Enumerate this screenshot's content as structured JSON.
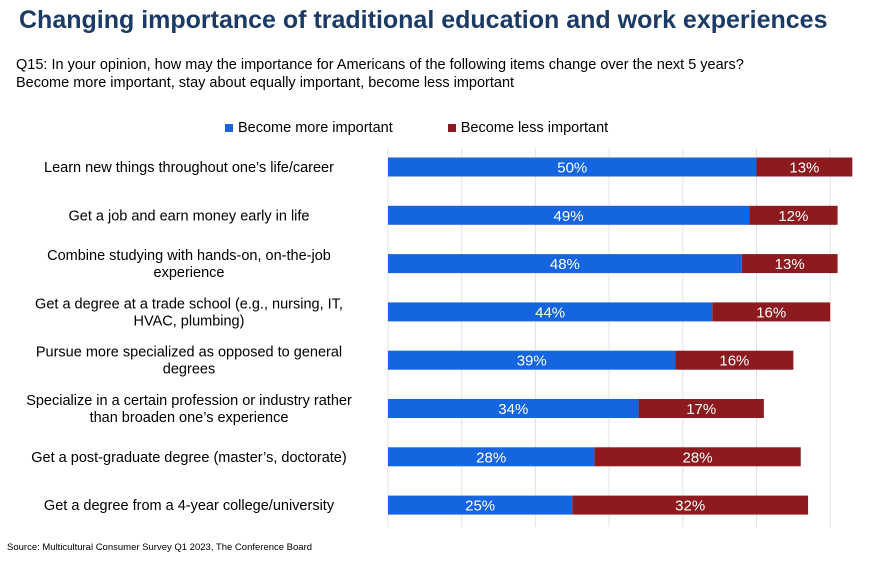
{
  "title": "Changing importance of traditional education and work experiences",
  "subtitle_line1": "Q15: In your opinion, how may the importance for Americans of the following items change over the next 5 years?",
  "subtitle_line2": "Become more important, stay about equally important, become less important",
  "source": "Source: Multicultural Consumer Survey Q1 2023, The Conference Board",
  "chart_data": {
    "type": "bar",
    "orientation": "horizontal",
    "stacked": true,
    "legend_position": "top",
    "xlim": [
      0,
      60
    ],
    "grid": true,
    "categories": [
      [
        "Learn new things throughout one’s life/career"
      ],
      [
        "Get a job and earn money early in life"
      ],
      [
        "Combine studying with hands-on, on-the-job",
        "experience"
      ],
      [
        "Get a degree at a trade school (e.g., nursing, IT,",
        "HVAC, plumbing)"
      ],
      [
        "Pursue more specialized as opposed to general",
        "degrees"
      ],
      [
        "Specialize in a certain profession or industry rather",
        "than broaden one’s experience"
      ],
      [
        "Get a post-graduate degree (master’s, doctorate)"
      ],
      [
        "Get a degree from a 4-year college/university"
      ]
    ],
    "series": [
      {
        "name": "Become more important",
        "color": "#1565e0",
        "values": [
          50,
          49,
          48,
          44,
          39,
          34,
          28,
          25
        ],
        "labels": [
          "50%",
          "49%",
          "48%",
          "44%",
          "39%",
          "34%",
          "28%",
          "25%"
        ]
      },
      {
        "name": "Become less important",
        "color": "#8c1a1f",
        "values": [
          13,
          12,
          13,
          16,
          16,
          17,
          28,
          32
        ],
        "labels": [
          "13%",
          "12%",
          "13%",
          "16%",
          "16%",
          "17%",
          "28%",
          "32%"
        ]
      }
    ]
  }
}
